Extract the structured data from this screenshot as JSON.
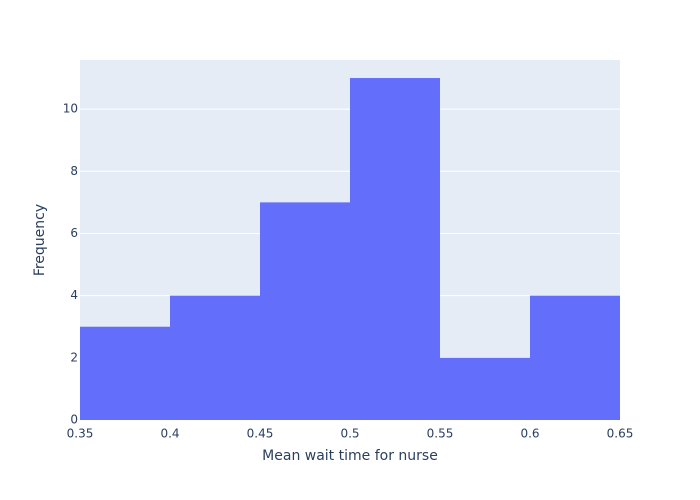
{
  "chart_data": {
    "type": "bar",
    "subtype": "histogram",
    "bins": [
      {
        "start": 0.35,
        "end": 0.4,
        "count": 3
      },
      {
        "start": 0.4,
        "end": 0.45,
        "count": 4
      },
      {
        "start": 0.45,
        "end": 0.5,
        "count": 7
      },
      {
        "start": 0.5,
        "end": 0.55,
        "count": 11
      },
      {
        "start": 0.55,
        "end": 0.6,
        "count": 2
      },
      {
        "start": 0.6,
        "end": 0.65,
        "count": 4
      }
    ],
    "xlabel": "Mean wait time for nurse",
    "ylabel": "Frequency",
    "xlim": [
      0.35,
      0.65
    ],
    "ylim": [
      0,
      11.58
    ],
    "x_ticks": [
      "0.35",
      "0.4",
      "0.45",
      "0.5",
      "0.55",
      "0.6",
      "0.65"
    ],
    "y_ticks": [
      "0",
      "2",
      "4",
      "6",
      "8",
      "10"
    ],
    "grid": true,
    "colors": {
      "bar": "#636efa",
      "plot_background": "#e5ecf6",
      "gridline": "#ffffff",
      "text": "#2a3f5f"
    }
  }
}
